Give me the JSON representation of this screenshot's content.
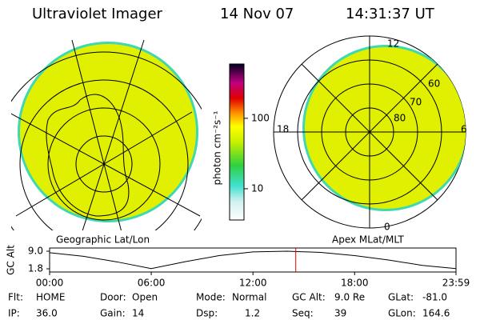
{
  "header": {
    "title": "Ultraviolet Imager",
    "date": "14 Nov 07",
    "time": "14:31:37 UT"
  },
  "left_panel": {
    "label": "Geographic Lat/Lon"
  },
  "right_panel": {
    "label": "Apex MLat/MLT",
    "mlt_labels": [
      "12",
      "18",
      "6",
      "0"
    ],
    "mlat_labels": [
      "60",
      "70",
      "80"
    ]
  },
  "colorbar": {
    "label": "photon cm⁻²s⁻¹",
    "range": [
      3.6,
      590
    ],
    "log_scale": true,
    "ticks": [
      100,
      10
    ]
  },
  "altitude_plot": {
    "type": "line",
    "ylabel": "GC Alt",
    "color": "#000000",
    "marker_color": "#e00000",
    "xlim": [
      0,
      23.983
    ],
    "ylim": [
      1.8,
      9.0
    ],
    "yticks": [
      {
        "value": 9.0,
        "label": "9.0"
      },
      1.8
    ],
    "xticks": [
      {
        "value": 0,
        "label": "00:00"
      },
      {
        "value": 6,
        "label": "06:00"
      },
      {
        "value": 12,
        "label": "12:00"
      },
      {
        "value": 18,
        "label": "18:00"
      },
      {
        "value": 23.983,
        "label": "23:59"
      }
    ],
    "x": [
      0,
      2,
      4,
      6,
      8,
      10,
      12,
      14,
      16,
      18,
      20,
      22,
      23.983
    ],
    "values": [
      8.4,
      6.9,
      4.6,
      1.9,
      4.7,
      7.2,
      8.7,
      9.0,
      8.5,
      7.2,
      5.4,
      3.2,
      1.9
    ],
    "marker_x": 14.527
  },
  "status": [
    [
      {
        "label": "Flt:",
        "value": "HOME"
      },
      {
        "label": "Door:",
        "value": "Open"
      },
      {
        "label": "Mode:",
        "value": "Normal"
      },
      {
        "label": "GC Alt:",
        "value": "9.0 Re"
      },
      {
        "label": "GLat:",
        "value": "-81.0"
      }
    ],
    [
      {
        "label": "IP:",
        "value": "36.0"
      },
      {
        "label": "Gain:",
        "value": "14"
      },
      {
        "label": "Dsp:",
        "value": "1.2"
      },
      {
        "label": "Seq:",
        "value": "39"
      },
      {
        "label": "GLon:",
        "value": "164.6"
      }
    ]
  ]
}
